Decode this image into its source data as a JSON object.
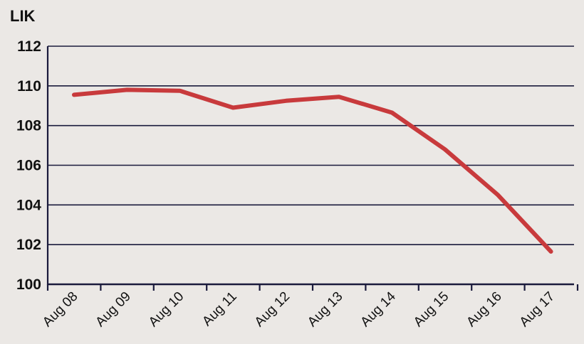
{
  "chart_data": {
    "type": "line",
    "title": "",
    "ylabel": "LIK",
    "xlabel": "",
    "categories": [
      "Aug 08",
      "Aug 09",
      "Aug 10",
      "Aug 11",
      "Aug 12",
      "Aug 13",
      "Aug 14",
      "Aug 15",
      "Aug 16",
      "Aug 17"
    ],
    "series": [
      {
        "values": [
          109.55,
          109.8,
          109.75,
          108.9,
          109.25,
          109.45,
          108.65,
          106.8,
          104.5,
          101.65
        ]
      }
    ],
    "ylim": [
      100,
      112
    ],
    "yticks": [
      100,
      102,
      104,
      106,
      108,
      110,
      112
    ],
    "grid": "horizontal",
    "colors": {
      "line": "#c83a3c",
      "grid": "#1a1a3c",
      "axis": "#1a1a3c",
      "background": "#ebe8e5"
    }
  }
}
